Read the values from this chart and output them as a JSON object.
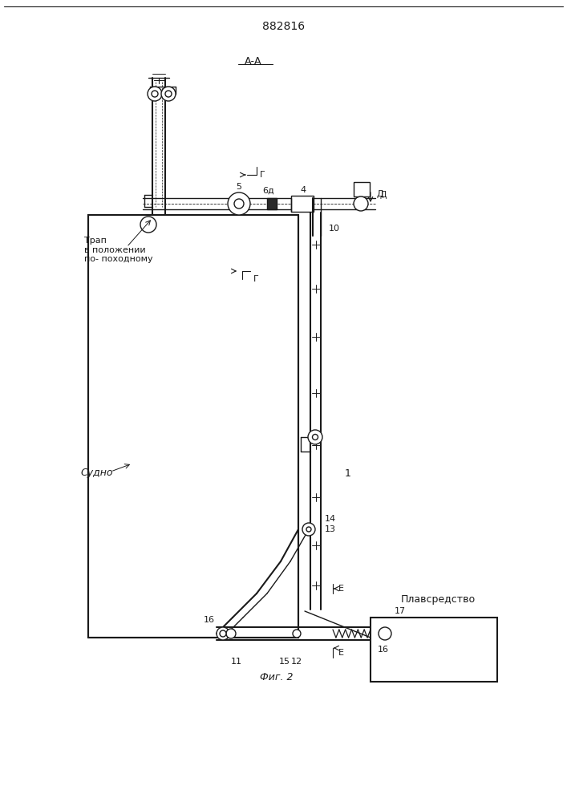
{
  "title": "882816",
  "section_label": "А-А",
  "fig_label": "Фиг. 2",
  "bg_color": "#ffffff",
  "line_color": "#1a1a1a",
  "labels": {
    "trap": "Трап\nв положении\nпо- походному",
    "sudno": "Судно",
    "plavsredstvo": "Плавсредство"
  }
}
